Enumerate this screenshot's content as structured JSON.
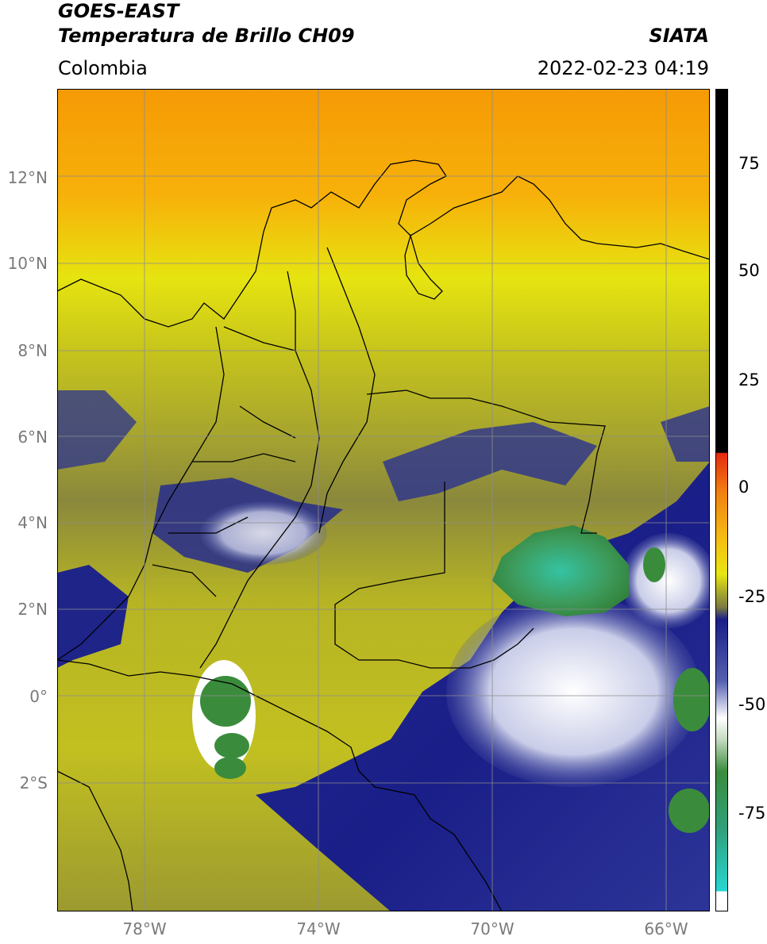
{
  "header": {
    "title_line1": "GOES-EAST",
    "title_line2": "Temperatura de Brillo CH09",
    "source": "SIATA",
    "region": "Colombia",
    "timestamp": "2022-02-23 04:19"
  },
  "axes": {
    "lat_labels": [
      "12°N",
      "10°N",
      "8°N",
      "6°N",
      "4°N",
      "2°N",
      "0°",
      "2°S"
    ],
    "lon_labels": [
      "78°W",
      "74°W",
      "70°W",
      "66°W"
    ]
  },
  "colorbar": {
    "ticks": [
      "75",
      "50",
      "25",
      "0",
      "-25",
      "-50",
      "-75"
    ],
    "colors": {
      "warm_top": "#000000",
      "red": "#e52a10",
      "orange": "#f59a05",
      "yellow": "#e8e610",
      "olive": "#7c7c42",
      "navy": "#1a1e88",
      "white": "#ffffff",
      "green": "#3a8c3c",
      "cyan": "#28d6d2"
    }
  }
}
